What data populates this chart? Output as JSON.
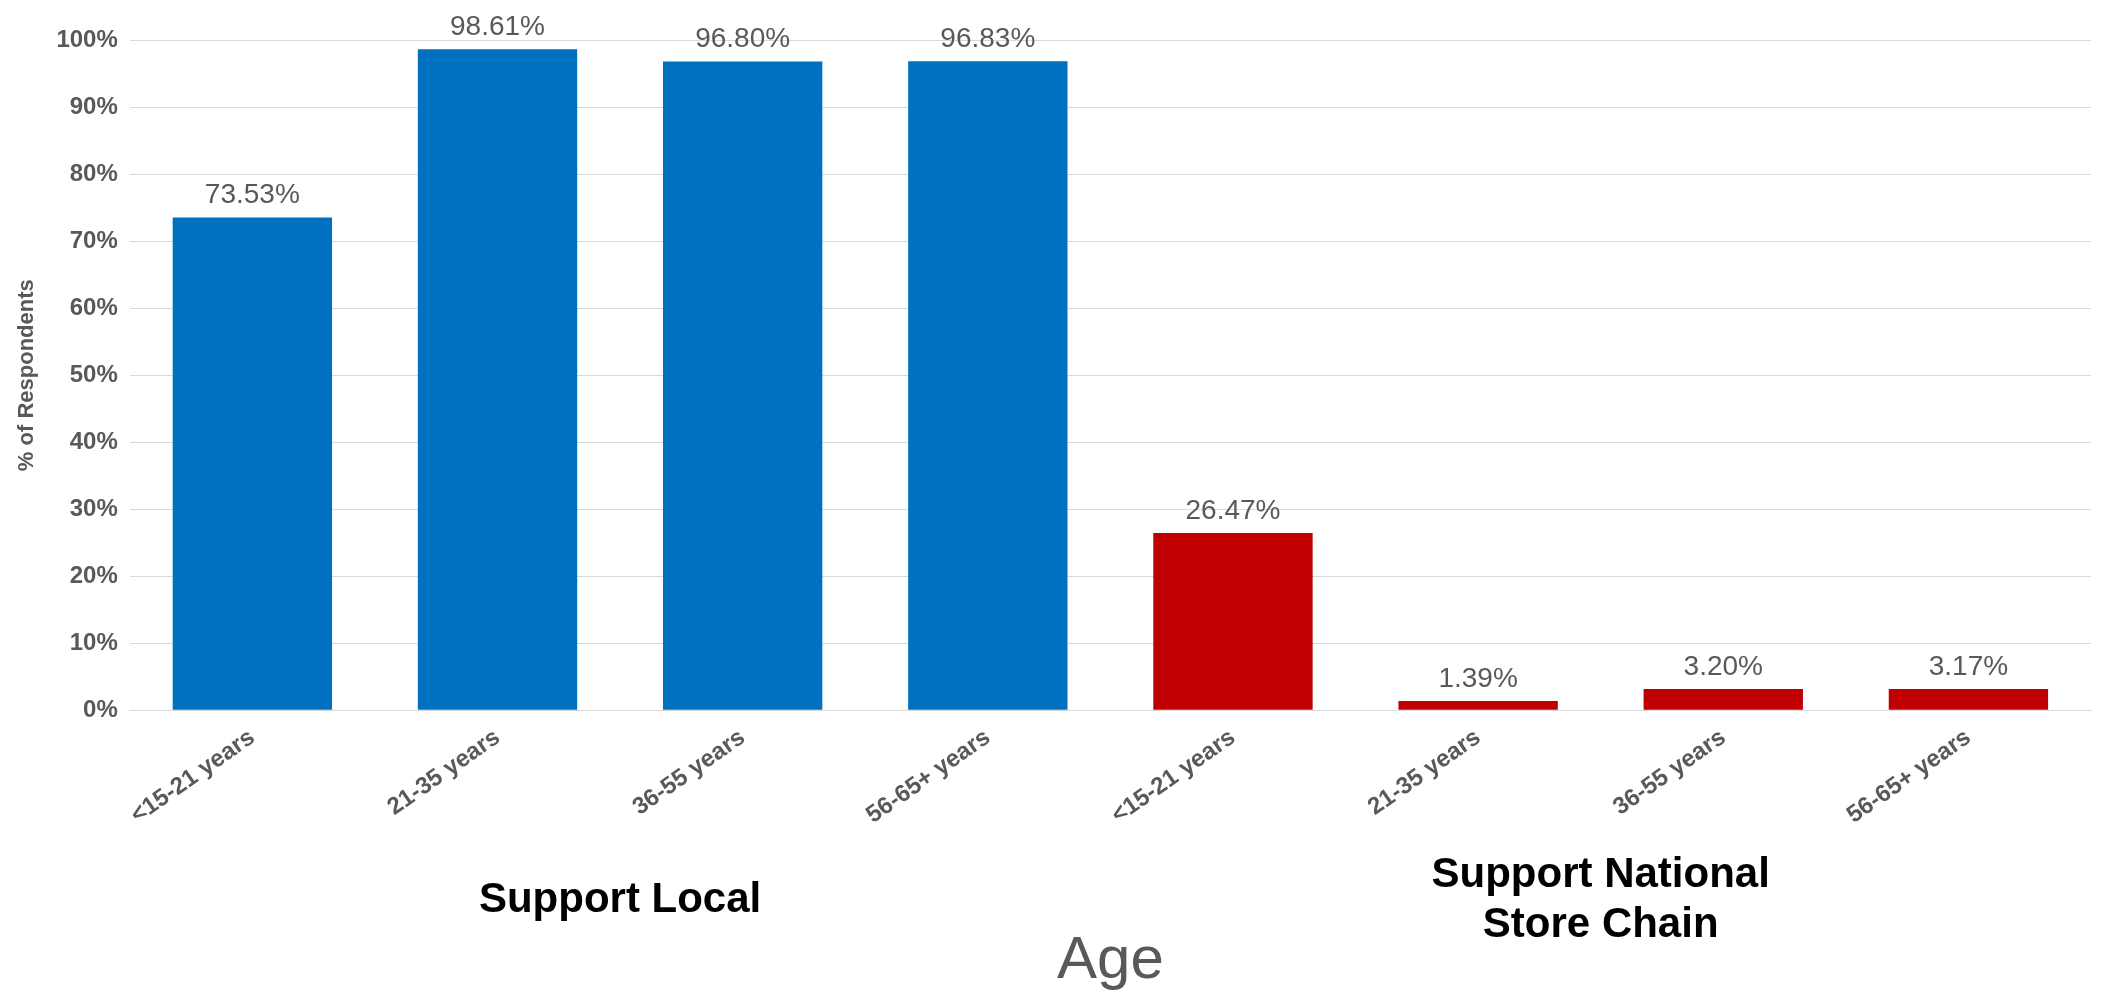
{
  "chart_data": {
    "type": "bar",
    "xlabel": "Age",
    "ylabel": "% of Respondents",
    "categories": [
      "<15-21 years",
      "21-35 years",
      "36-55 years",
      "56-65+ years",
      "<15-21 years",
      "21-35 years",
      "36-55 years",
      "56-65+ years"
    ],
    "series": [
      {
        "color": "#0070c0",
        "values": [
          73.53,
          98.61,
          96.8,
          96.83,
          null,
          null,
          null,
          null
        ],
        "value_labels": [
          "73.53%",
          "98.61%",
          "96.80%",
          "96.83%",
          null,
          null,
          null,
          null
        ]
      },
      {
        "color": "#c00000",
        "values": [
          null,
          null,
          null,
          null,
          26.47,
          1.39,
          3.2,
          3.17
        ],
        "value_labels": [
          null,
          null,
          null,
          null,
          "26.47%",
          "1.39%",
          "3.20%",
          "3.17%"
        ]
      }
    ],
    "ylim": [
      0,
      100
    ],
    "yticks": [
      {
        "value": 0,
        "label": "0%"
      },
      {
        "value": 10,
        "label": "10%"
      },
      {
        "value": 20,
        "label": "20%"
      },
      {
        "value": 30,
        "label": "30%"
      },
      {
        "value": 40,
        "label": "40%"
      },
      {
        "value": 50,
        "label": "50%"
      },
      {
        "value": 60,
        "label": "60%"
      },
      {
        "value": 70,
        "label": "70%"
      },
      {
        "value": 80,
        "label": "80%"
      },
      {
        "value": 90,
        "label": "90%"
      },
      {
        "value": 100,
        "label": "100%"
      }
    ],
    "annotations": [
      "Support Local",
      "Support National Store Chain"
    ],
    "grid": "y",
    "legend": false
  }
}
